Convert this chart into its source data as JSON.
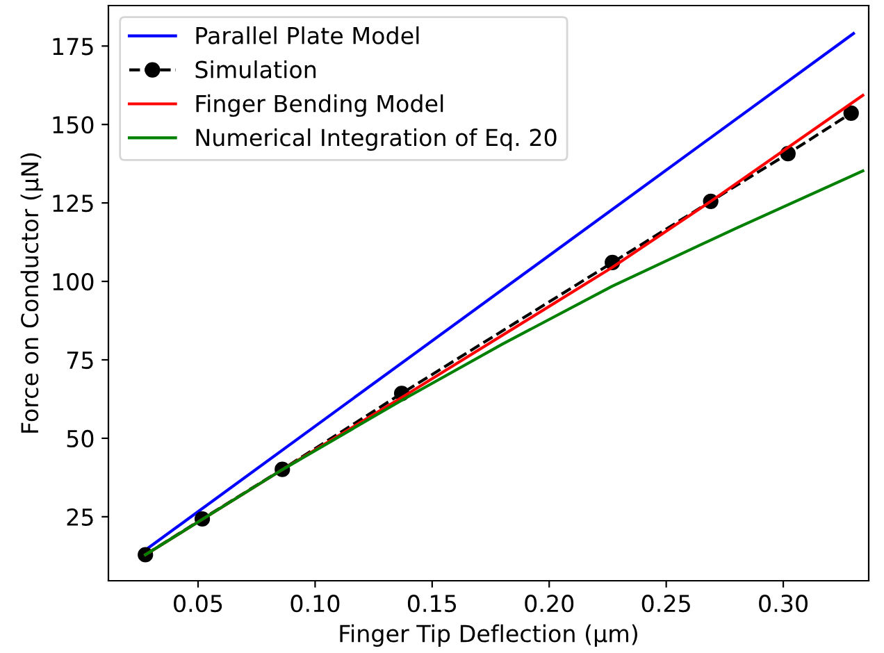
{
  "chart_data": {
    "type": "line",
    "xlabel": "Finger Tip Deflection (μm)",
    "ylabel": "Force on Conductor (μN)",
    "xlim": [
      0.0117,
      0.3365
    ],
    "ylim": [
      4.6,
      187.9
    ],
    "xticks": [
      {
        "value": 0.05,
        "label": "0.05"
      },
      {
        "value": 0.1,
        "label": "0.10"
      },
      {
        "value": 0.15,
        "label": "0.15"
      },
      {
        "value": 0.2,
        "label": "0.20"
      },
      {
        "value": 0.25,
        "label": "0.25"
      },
      {
        "value": 0.3,
        "label": "0.30"
      }
    ],
    "yticks": [
      25,
      50,
      75,
      100,
      125,
      150,
      175
    ],
    "legend": "top left",
    "grid": false,
    "series": [
      {
        "name": "Parallel Plate Model",
        "color": "#0000ff",
        "x": [
          0.0275,
          0.33
        ],
        "values": [
          14.4,
          179
        ],
        "marker": "none",
        "line_style": "solid"
      },
      {
        "name": "Simulation",
        "color": "#000000",
        "x": [
          0.0275,
          0.0518,
          0.086,
          0.137,
          0.227,
          0.269,
          0.302,
          0.329
        ],
        "values": [
          12.9,
          24.3,
          40.1,
          64.3,
          106,
          125.5,
          140.7,
          153.6
        ],
        "marker": "circle",
        "line_style": "dashed"
      },
      {
        "name": "Finger Bending Model",
        "color": "#ff0000",
        "x": [
          0.0275,
          0.086,
          0.137,
          0.227,
          0.269,
          0.334
        ],
        "values": [
          12.9,
          40,
          63,
          104.5,
          125.5,
          159.3
        ],
        "marker": "none",
        "line_style": "solid"
      },
      {
        "name": "Numerical Integration of Eq. 20",
        "color": "#008000",
        "x": [
          0.0275,
          0.086,
          0.137,
          0.18,
          0.227,
          0.28,
          0.334
        ],
        "values": [
          12.9,
          40,
          62.1,
          80,
          98.5,
          117,
          135.2
        ],
        "marker": "none",
        "line_style": "solid"
      }
    ]
  }
}
